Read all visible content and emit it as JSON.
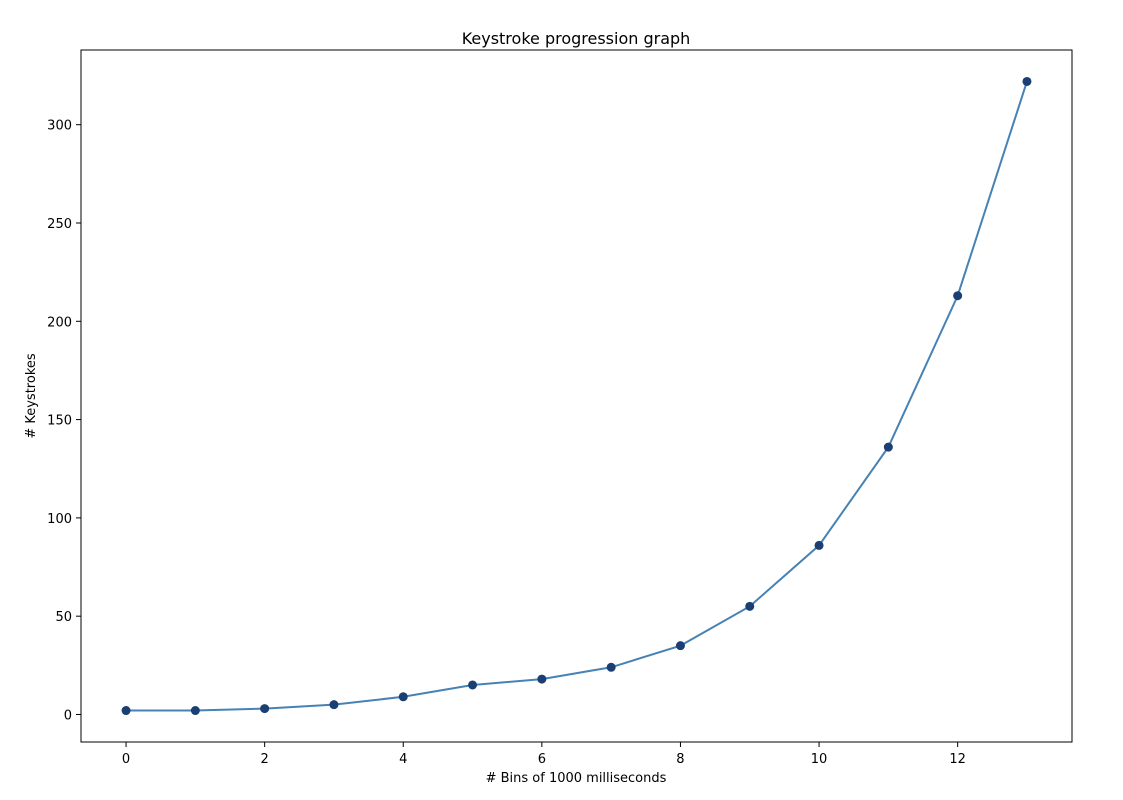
{
  "chart_data": {
    "type": "line",
    "title": "Keystroke progression graph",
    "xlabel": "# Bins of 1000 milliseconds",
    "ylabel": "# Keystrokes",
    "xlim": [
      -0.65,
      13.65
    ],
    "ylim": [
      -14,
      338
    ],
    "xticks": [
      0,
      2,
      4,
      6,
      8,
      10,
      12
    ],
    "yticks": [
      0,
      50,
      100,
      150,
      200,
      250,
      300
    ],
    "grid": false,
    "legend": "none",
    "series": [
      {
        "x": [
          0,
          1,
          2,
          3,
          4,
          5,
          6,
          7,
          8,
          9,
          10,
          11,
          12,
          13
        ],
        "y": [
          2,
          2,
          3,
          5,
          9,
          15,
          18,
          24,
          35,
          55,
          86,
          136,
          213,
          322
        ],
        "line_color": "#4682b4",
        "marker_color": "#1a3f73"
      }
    ]
  }
}
